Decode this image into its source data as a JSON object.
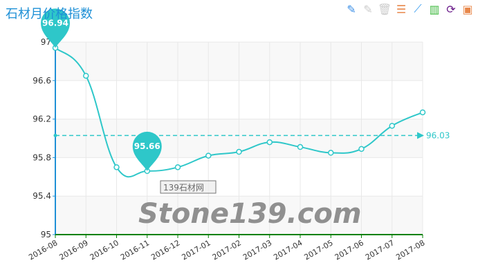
{
  "title": "石材月价格指数",
  "toolbar": [
    {
      "icon": "pencil-plus-icon",
      "color": "#3a8ee6"
    },
    {
      "icon": "pencil-minus-icon",
      "color": "#cccccc"
    },
    {
      "icon": "trash-icon",
      "color": "#cccccc"
    },
    {
      "icon": "data-view-icon",
      "color": "#e8874a"
    },
    {
      "icon": "line-chart-icon",
      "color": "#3a9ef0"
    },
    {
      "icon": "bar-chart-icon",
      "color": "#3cb83c"
    },
    {
      "icon": "refresh-icon",
      "color": "#6a1b8a"
    },
    {
      "icon": "save-icon",
      "color": "#e8874a"
    }
  ],
  "watermark": {
    "main": "Stone139.com",
    "sub": "139石材网"
  },
  "chart_data": {
    "type": "line",
    "categories": [
      "2016-08",
      "2016-09",
      "2016-10",
      "2016-11",
      "2016-12",
      "2017-01",
      "2017-02",
      "2017-03",
      "2017-04",
      "2017-05",
      "2017-06",
      "2017-07",
      "2017-08"
    ],
    "values": [
      96.94,
      96.65,
      95.7,
      95.66,
      95.7,
      95.82,
      95.86,
      95.96,
      95.91,
      95.85,
      95.89,
      96.13,
      96.27
    ],
    "ylim": [
      95,
      97
    ],
    "yticks": [
      "95",
      "95.4",
      "95.8",
      "96.2",
      "96.6",
      "97"
    ],
    "max_label": "96.94",
    "min_label": "95.66",
    "average_label": "96.03",
    "average": 96.03,
    "grid": true,
    "smooth": true,
    "color": "#2ec7c9",
    "axis_color": "#1e90d6",
    "xaxis_color": "#008000"
  }
}
